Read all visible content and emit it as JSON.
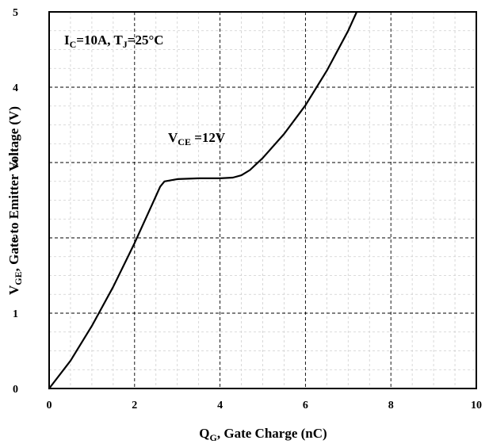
{
  "chart_data": {
    "type": "line",
    "xlabel": {
      "main": "Q",
      "sub": "G",
      "rest": ", Gate Charge (nC)"
    },
    "ylabel": {
      "main": "V",
      "sub": "GE",
      "rest": ", Gate to Emitter Voltage (V)"
    },
    "xlim": [
      0,
      10
    ],
    "ylim": [
      0,
      5
    ],
    "x_ticks": [
      "0",
      "2",
      "4",
      "6",
      "8",
      "10"
    ],
    "y_ticks": [
      "0",
      "1",
      "2",
      "3",
      "4",
      "5"
    ],
    "grid": true,
    "annotations": {
      "conditions": {
        "p1": "I",
        "s1": "C",
        "p2": "=10A, T",
        "s2": "J",
        "p3": "=25°C"
      },
      "vce": {
        "p1": "V",
        "s1": "CE",
        "p2": " =12V"
      }
    },
    "series": [
      {
        "x": [
          0,
          0.5,
          1.0,
          1.5,
          2.0,
          2.4,
          2.6,
          2.7,
          3.0,
          3.5,
          4.0,
          4.3,
          4.5,
          4.7,
          5.0,
          5.5,
          6.0,
          6.5,
          7.0,
          7.2
        ],
        "y": [
          0,
          0.37,
          0.83,
          1.35,
          1.93,
          2.43,
          2.68,
          2.75,
          2.78,
          2.79,
          2.79,
          2.8,
          2.83,
          2.9,
          3.06,
          3.38,
          3.76,
          4.22,
          4.75,
          5.0
        ]
      }
    ]
  }
}
